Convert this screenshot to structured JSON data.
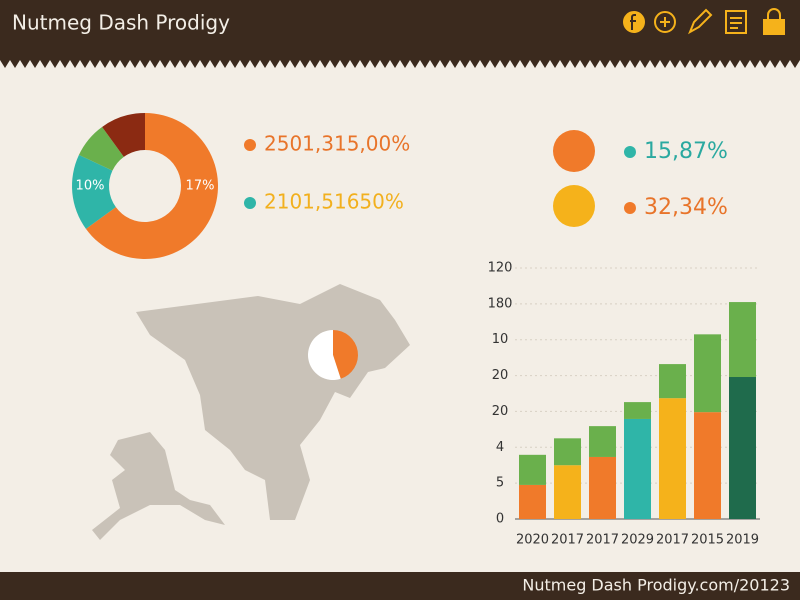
{
  "header": {
    "title": "Nutmeg Dash Prodigy"
  },
  "donut": {
    "type": "pie",
    "values": [
      65,
      17,
      8,
      10
    ],
    "colors": [
      "#f07a2a",
      "#2fb5a8",
      "#6ab04c",
      "#8b2a12"
    ],
    "annotations": [
      "10%",
      "17%"
    ]
  },
  "stats": [
    {
      "text": "2501,315,00%",
      "dot": "#f07a2a",
      "color": "#e8742a"
    },
    {
      "text": "2101,51650%",
      "dot": "#2fb5a8",
      "color": "#f2b01e"
    },
    {
      "text": "15,87%",
      "dot": "#2fb5a8",
      "color": "#2aa9a0"
    },
    {
      "text": "32,34%",
      "dot": "#f07a2a",
      "color": "#e8742a"
    }
  ],
  "map_pie": {
    "type": "pie",
    "values": [
      45,
      55
    ],
    "colors": [
      "#f07a2a",
      "#ffffff"
    ]
  },
  "bar_chart": {
    "type": "bar",
    "stacked": true,
    "categories": [
      "2020",
      "2017",
      "2017",
      "2029",
      "2017",
      "2015",
      "2019"
    ],
    "series": [
      {
        "colors": [
          "#f07a2a",
          "#f5b21b",
          "#f07a2a",
          "#2fb5a8",
          "#f5b21b",
          "#f07a2a",
          "#1f6b4c"
        ],
        "values": [
          0.95,
          1.5,
          1.73,
          2.79,
          3.37,
          2.98,
          3.96
        ]
      },
      {
        "color": "#6ab04c",
        "values": [
          0.84,
          0.75,
          0.86,
          0.47,
          0.95,
          2.17,
          2.09
        ]
      }
    ],
    "ylim": [
      0,
      7
    ],
    "yticks": [
      {
        "value": 0,
        "label": "0"
      },
      {
        "value": 1,
        "label": "5"
      },
      {
        "value": 2,
        "label": "4"
      },
      {
        "value": 3,
        "label": "20"
      },
      {
        "value": 4,
        "label": "20"
      },
      {
        "value": 5,
        "label": "10"
      },
      {
        "value": 6,
        "label": "180"
      },
      {
        "value": 7,
        "label": "120"
      }
    ],
    "grid": true
  },
  "footer": {
    "text": "Nutmeg Dash Prodigy.com/20123"
  }
}
